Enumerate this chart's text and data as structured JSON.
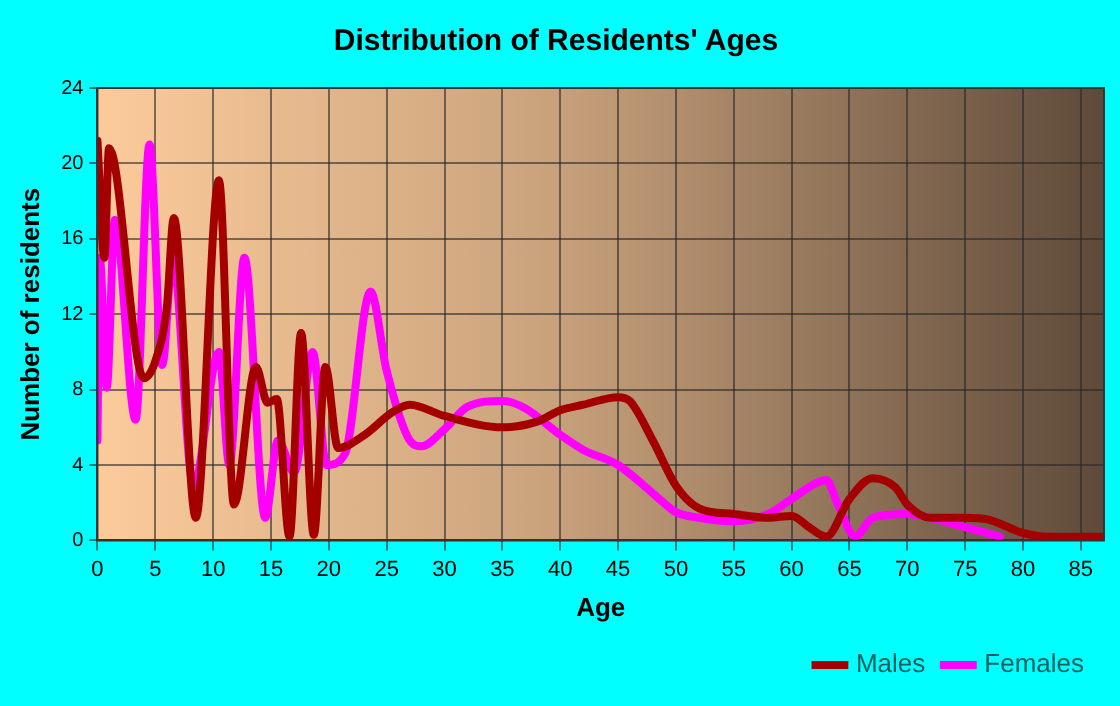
{
  "chart_data": {
    "type": "line",
    "title": "Distribution of Residents' Ages",
    "xlabel": "Age",
    "ylabel": "Number of residents",
    "xlim": [
      0,
      87
    ],
    "xticks": [
      0,
      5,
      10,
      15,
      20,
      25,
      30,
      35,
      40,
      45,
      50,
      55,
      60,
      65,
      70,
      75,
      80,
      85
    ],
    "ylim": [
      0,
      24
    ],
    "yticks": [
      0,
      4,
      8,
      12,
      16,
      20,
      24
    ],
    "grid": true,
    "legend": "bottom right",
    "marker": "none",
    "line_style": "solid",
    "series": [
      {
        "name": "Males",
        "color": "#a50000",
        "x": [
          0,
          0.6,
          1,
          4,
          5,
          6,
          6.6,
          8.5,
          10.5,
          11.8,
          13.7,
          14.7,
          15.5,
          16.6,
          17.6,
          18.7,
          19.7,
          20.8,
          23.1,
          25.5,
          27,
          30,
          35,
          38,
          40,
          42,
          45,
          46,
          48,
          50,
          52,
          55,
          58,
          60,
          61.5,
          63,
          65,
          67,
          69,
          70,
          72,
          75,
          77,
          80,
          82,
          87
        ],
        "values": [
          21.2,
          15,
          20.8,
          8.6,
          9.5,
          12.4,
          17.1,
          1.2,
          19.1,
          1.9,
          9.2,
          7.3,
          7.5,
          0.2,
          11,
          0.3,
          9.2,
          4.9,
          5.6,
          6.8,
          7.2,
          6.6,
          6,
          6.3,
          6.9,
          7.2,
          7.6,
          7.4,
          5.3,
          2.9,
          1.7,
          1.4,
          1.2,
          1.3,
          0.7,
          0.2,
          2.2,
          3.3,
          2.8,
          1.9,
          1.2,
          1.2,
          1.1,
          0.4,
          0.2,
          0.2
        ]
      },
      {
        "name": "Females",
        "color": "#ff00ff",
        "x": [
          0,
          0.2,
          0.8,
          1.5,
          3.3,
          4.5,
          5.6,
          6.5,
          8.3,
          10.5,
          11.4,
          12.7,
          14.5,
          15.6,
          17,
          18.6,
          19.8,
          21.4,
          23.6,
          25,
          27,
          28,
          30,
          32,
          35,
          37,
          40,
          42,
          45,
          48,
          50,
          52,
          55,
          58,
          60,
          62,
          63,
          64,
          65.5,
          67,
          70,
          72,
          75,
          78
        ],
        "values": [
          5.3,
          15,
          8.1,
          17,
          6.4,
          21,
          9.3,
          15,
          2.9,
          10,
          4,
          15,
          1.2,
          5.3,
          3.6,
          10,
          4,
          4.6,
          13.2,
          9,
          5.3,
          5,
          5.9,
          7.1,
          7.4,
          7,
          5.6,
          4.8,
          4,
          2.5,
          1.5,
          1.2,
          1,
          1.4,
          2.2,
          3,
          3.2,
          1.9,
          0.2,
          1.2,
          1.4,
          1.2,
          0.7,
          0.2
        ]
      }
    ]
  }
}
